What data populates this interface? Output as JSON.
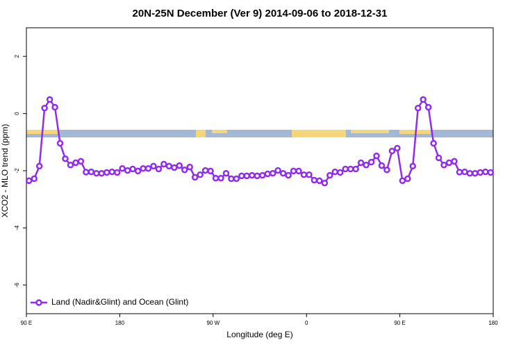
{
  "chart_data": {
    "type": "line",
    "title": "20N-25N December (Ver 9)   2014-09-06 to 2018-12-31",
    "x_label": "Longitude (deg E)",
    "y_label": "XCO2 - MLO trend (ppm)",
    "xlim": [
      90,
      540
    ],
    "xticks": [
      {
        "value": 90,
        "label": "90 E"
      },
      {
        "value": 180,
        "label": "180"
      },
      {
        "value": 270,
        "label": "90 W"
      },
      {
        "value": 360,
        "label": "0"
      },
      {
        "value": 450,
        "label": "90 E"
      },
      {
        "value": 540,
        "label": "180"
      }
    ],
    "ylim": [
      -7,
      3
    ],
    "yticks": [
      2,
      0,
      -2,
      -4,
      -6
    ],
    "legend_position": "bottom-left",
    "x": [
      92.5,
      97.5,
      102.5,
      107.5,
      112.5,
      117.5,
      122.5,
      127.5,
      132.5,
      137.5,
      142.5,
      147.5,
      152.5,
      157.5,
      162.5,
      167.5,
      172.5,
      177.5,
      182.5,
      187.5,
      192.5,
      197.5,
      202.5,
      207.5,
      212.5,
      217.5,
      222.5,
      227.5,
      232.5,
      237.5,
      242.5,
      247.5,
      252.5,
      257.5,
      262.5,
      267.5,
      272.5,
      277.5,
      282.5,
      287.5,
      292.5,
      297.5,
      302.5,
      307.5,
      312.5,
      317.5,
      322.5,
      327.5,
      332.5,
      337.5,
      342.5,
      347.5,
      352.5,
      357.5,
      362.5,
      367.5,
      372.5,
      377.5,
      382.5,
      387.5,
      392.5,
      397.5,
      402.5,
      407.5,
      412.5,
      417.5,
      422.5,
      427.5,
      432.5,
      437.5,
      442.5,
      447.5,
      452.5,
      457.5,
      462.5,
      467.5,
      472.5,
      477.5,
      482.5,
      487.5,
      492.5,
      497.5,
      502.5,
      507.5,
      512.5,
      517.5,
      522.5,
      527.5,
      532.5,
      537.5
    ],
    "series": [
      {
        "name": "Land (Nadir&Glint) and Ocean (Glint)",
        "color": "#912cee",
        "values": [
          -2.35,
          -2.28,
          -1.84,
          0.19,
          0.49,
          0.22,
          -1.04,
          -1.58,
          -1.8,
          -1.72,
          -1.67,
          -2.05,
          -2.04,
          -2.09,
          -2.09,
          -2.06,
          -2.04,
          -2.06,
          -1.92,
          -1.99,
          -1.94,
          -2.01,
          -1.92,
          -1.92,
          -1.84,
          -1.94,
          -1.77,
          -1.84,
          -1.89,
          -1.82,
          -1.97,
          -1.87,
          -2.23,
          -2.14,
          -1.99,
          -2.01,
          -2.26,
          -2.26,
          -2.09,
          -2.28,
          -2.28,
          -2.18,
          -2.18,
          -2.16,
          -2.18,
          -2.16,
          -2.11,
          -2.09,
          -1.99,
          -2.09,
          -2.16,
          -2.01,
          -2.01,
          -2.14,
          -2.14,
          -2.33,
          -2.35,
          -2.43,
          -2.16,
          -2.04,
          -2.06,
          -1.94,
          -1.94,
          -1.94,
          -1.72,
          -1.8,
          -1.7,
          -1.48,
          -1.82,
          -1.97,
          -1.31,
          -1.21,
          -2.35,
          -2.28,
          -1.84,
          0.19,
          0.49,
          0.22,
          -1.04,
          -1.55,
          -1.8,
          -1.72,
          -1.67,
          -2.05,
          -2.04,
          -2.09,
          -2.09,
          -2.06,
          -2.04,
          -2.06
        ]
      }
    ]
  }
}
